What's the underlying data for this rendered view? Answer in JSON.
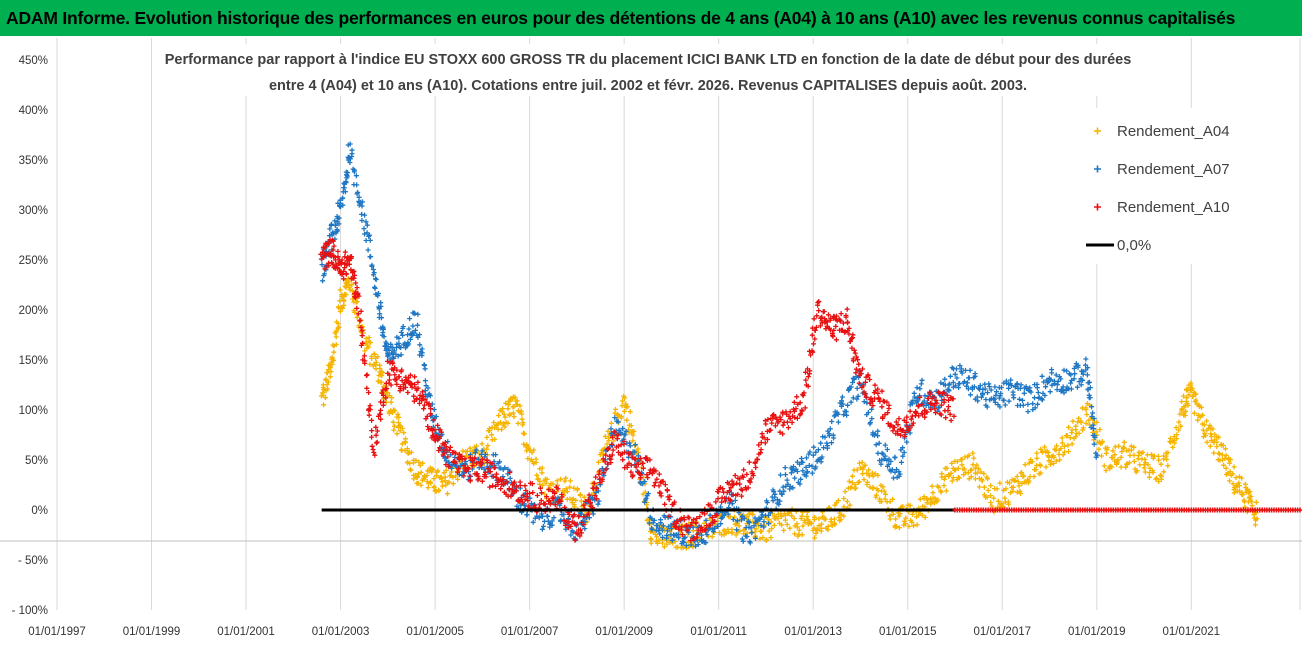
{
  "banner": {
    "title": "ADAM Informe. Evolution historique des performances en euros pour des détentions de 4 ans (A04) à 10 ans (A10) avec les revenus connus capitalisés"
  },
  "chart_data": {
    "type": "scatter",
    "title_lines": [
      "Performance par rapport à l'indice EU STOXX 600 GROSS TR  du placement ICICI BANK LTD en fonction de la date de début pour des durées",
      "entre 4 (A04) et 10 ans (A10).  Cotations entre juil. 2002 et févr. 2026. Revenus CAPITALISES depuis août. 2003."
    ],
    "ylim": [
      -100,
      450
    ],
    "yticks": [
      -100,
      -50,
      0,
      50,
      100,
      150,
      200,
      250,
      300,
      350,
      400,
      450
    ],
    "ytick_labels": [
      "- 100%",
      "- 50%",
      "0%",
      "50%",
      "100%",
      "150%",
      "200%",
      "250%",
      "300%",
      "350%",
      "400%",
      "450%"
    ],
    "xlim": [
      1997.0,
      2023.3
    ],
    "xticks": [
      1997,
      1999,
      2001,
      2003,
      2005,
      2007,
      2009,
      2011,
      2013,
      2015,
      2017,
      2019,
      2021
    ],
    "xtick_labels": [
      "01/01/1997",
      "01/01/1999",
      "01/01/2001",
      "01/01/2003",
      "01/01/2005",
      "01/01/2007",
      "01/01/2009",
      "01/01/2011",
      "01/01/2013",
      "01/01/2015",
      "01/01/2017",
      "01/01/2019",
      "01/01/2021"
    ],
    "grid": "vertical",
    "legend_position": "top-right",
    "legend": [
      {
        "label": "Rendement_A04",
        "color": "#f5b400"
      },
      {
        "label": "Rendement_A07",
        "color": "#1f77c4"
      },
      {
        "label": "Rendement_A10",
        "color": "#e81010"
      },
      {
        "label": "0,0%",
        "color": "#000000"
      }
    ],
    "series": [
      {
        "name": "Rendement_A04",
        "color": "#f5b400",
        "x": [
          2002.6,
          2002.8,
          2003.0,
          2003.2,
          2003.5,
          2003.8,
          2004.0,
          2004.3,
          2004.6,
          2004.9,
          2005.2,
          2005.6,
          2006.0,
          2006.4,
          2006.7,
          2007.0,
          2007.4,
          2007.8,
          2008.2,
          2008.6,
          2009.0,
          2009.3,
          2009.6,
          2010.0,
          2010.4,
          2010.8,
          2011.2,
          2011.6,
          2012.0,
          2012.4,
          2012.8,
          2013.2,
          2013.6,
          2014.0,
          2014.4,
          2014.8,
          2015.2,
          2015.6,
          2016.0,
          2016.4,
          2016.8,
          2017.2,
          2017.6,
          2018.0,
          2018.4,
          2018.8,
          2019.2,
          2019.6,
          2020.0,
          2020.4,
          2020.8,
          2021.0,
          2021.3,
          2021.6,
          2021.9,
          2022.2,
          2022.4
        ],
        "y": [
          110,
          140,
          210,
          230,
          170,
          140,
          110,
          70,
          40,
          30,
          25,
          50,
          55,
          90,
          105,
          60,
          20,
          20,
          0,
          60,
          110,
          50,
          -25,
          -30,
          -25,
          -20,
          -10,
          -15,
          -20,
          -10,
          -15,
          -15,
          0,
          40,
          20,
          -10,
          -5,
          20,
          40,
          45,
          10,
          20,
          40,
          55,
          70,
          100,
          50,
          55,
          45,
          40,
          100,
          115,
          80,
          60,
          30,
          10,
          -5
        ]
      },
      {
        "name": "Rendement_A07",
        "color": "#1f77c4",
        "x": [
          2002.6,
          2002.8,
          2003.0,
          2003.2,
          2003.5,
          2003.8,
          2004.0,
          2004.3,
          2004.6,
          2004.9,
          2005.2,
          2005.6,
          2006.0,
          2006.4,
          2006.8,
          2007.2,
          2007.6,
          2008.0,
          2008.4,
          2008.8,
          2009.2,
          2009.6,
          2010.0,
          2010.4,
          2010.8,
          2011.2,
          2011.6,
          2012.0,
          2012.4,
          2012.8,
          2013.2,
          2013.6,
          2014.0,
          2014.4,
          2014.8,
          2015.2,
          2015.6,
          2016.0,
          2016.4,
          2016.8,
          2017.2,
          2017.6,
          2018.0,
          2018.4,
          2018.8,
          2019.0
        ],
        "y": [
          240,
          270,
          300,
          360,
          290,
          210,
          150,
          170,
          190,
          100,
          60,
          40,
          50,
          40,
          10,
          -10,
          0,
          -20,
          10,
          80,
          60,
          -10,
          -20,
          -25,
          -20,
          10,
          -25,
          -5,
          30,
          40,
          60,
          100,
          130,
          60,
          40,
          120,
          110,
          135,
          125,
          110,
          120,
          110,
          130,
          130,
          140,
          50
        ]
      },
      {
        "name": "Rendement_A10",
        "color": "#e81010",
        "x": [
          2002.6,
          2002.8,
          2003.0,
          2003.2,
          2003.4,
          2003.7,
          2004.0,
          2004.3,
          2004.6,
          2004.9,
          2005.2,
          2005.6,
          2006.0,
          2006.4,
          2006.8,
          2007.2,
          2007.6,
          2008.0,
          2008.4,
          2008.8,
          2009.2,
          2009.6,
          2010.0,
          2010.4,
          2010.8,
          2011.2,
          2011.6,
          2012.0,
          2012.4,
          2012.8,
          2013.1,
          2013.4,
          2013.7,
          2014.0,
          2014.4,
          2014.8,
          2015.2,
          2015.6,
          2016.0
        ],
        "y": [
          250,
          260,
          240,
          250,
          200,
          60,
          140,
          130,
          120,
          90,
          60,
          40,
          40,
          30,
          20,
          10,
          10,
          -20,
          20,
          70,
          40,
          40,
          0,
          -20,
          -5,
          20,
          30,
          80,
          90,
          110,
          200,
          180,
          190,
          130,
          110,
          80,
          100,
          110,
          100
        ]
      }
    ],
    "zero_line": {
      "label": "0,0%",
      "x_start": 2002.6,
      "x_end": 2016.0,
      "color": "#000000"
    },
    "zero_markers": {
      "series": "Rendement_A10",
      "x_start": 2016.0,
      "x_end": 2023.3,
      "y": 0
    }
  }
}
